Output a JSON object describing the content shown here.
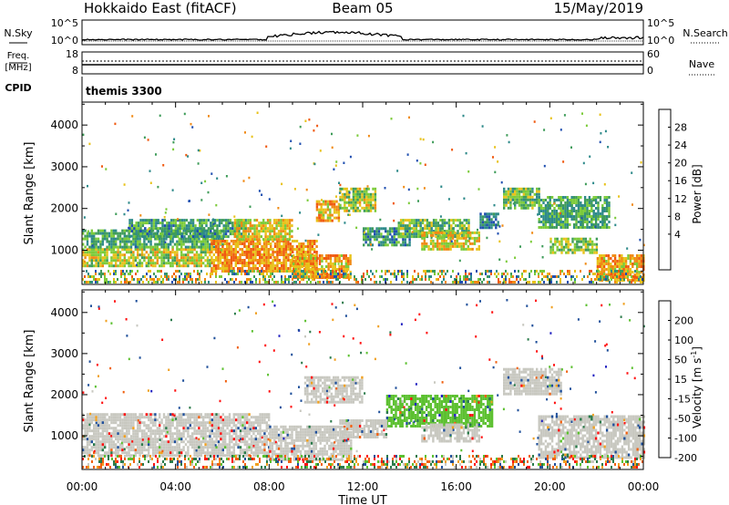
{
  "header": {
    "station": "Hokkaido East (fitACF)",
    "beam": "Beam 05",
    "date": "15/May/2019"
  },
  "top_panels": {
    "nsky_label": "N.Sky",
    "nsearch_label": "N.Search",
    "nsky_ticks": [
      "10^5",
      "10^0"
    ],
    "nsearch_ticks": [
      "10^5",
      "10^0"
    ],
    "freq_label_1": "Freq.",
    "freq_label_2": "[MHz]",
    "freq_ticks": [
      "18",
      "8"
    ],
    "nave_label": "Nave",
    "nave_ticks": [
      "60",
      "0"
    ],
    "cpid_label": "CPID",
    "cpid_value": "themis 3300"
  },
  "chart_data": [
    {
      "type": "heatmap",
      "title": "",
      "xlabel": "Time UT",
      "ylabel": "Slant Range [km]",
      "xlim": [
        0,
        24
      ],
      "ylim": [
        180,
        4550
      ],
      "x_ticks": [
        "00:00",
        "04:00",
        "08:00",
        "12:00",
        "16:00",
        "20:00",
        "00:00"
      ],
      "y_ticks": [
        1000,
        2000,
        3000,
        4000
      ],
      "colorbar": {
        "label": "Power [dB]",
        "ticks": [
          "28",
          "24",
          "20",
          "16",
          "12",
          "8",
          "4"
        ],
        "colors": [
          "#2020ff",
          "#204fb0",
          "#2e8a8a",
          "#3f9c5a",
          "#7ccb3a",
          "#e8c21a",
          "#f08a14",
          "#f05a10",
          "#ff1a1a"
        ]
      },
      "regions": [
        {
          "t": [
            0.0,
            5.5
          ],
          "r": [
            650,
            1050
          ],
          "v": 20
        },
        {
          "t": [
            0.0,
            6.0
          ],
          "r": [
            1050,
            1500
          ],
          "v": 14
        },
        {
          "t": [
            2.0,
            7.0
          ],
          "r": [
            1300,
            1750
          ],
          "v": 13
        },
        {
          "t": [
            5.5,
            10.0
          ],
          "r": [
            500,
            1250
          ],
          "v": 26
        },
        {
          "t": [
            6.5,
            9.0
          ],
          "r": [
            1250,
            1750
          ],
          "v": 22
        },
        {
          "t": [
            9.0,
            11.5
          ],
          "r": [
            350,
            900
          ],
          "v": 25
        },
        {
          "t": [
            10.0,
            11.0
          ],
          "r": [
            1700,
            2200
          ],
          "v": 24
        },
        {
          "t": [
            11.0,
            12.5
          ],
          "r": [
            1950,
            2500
          ],
          "v": 19
        },
        {
          "t": [
            12.0,
            14.0
          ],
          "r": [
            1150,
            1550
          ],
          "v": 12
        },
        {
          "t": [
            13.5,
            16.5
          ],
          "r": [
            1350,
            1750
          ],
          "v": 16
        },
        {
          "t": [
            14.5,
            17.0
          ],
          "r": [
            1050,
            1450
          ],
          "v": 22
        },
        {
          "t": [
            17.0,
            17.8
          ],
          "r": [
            1550,
            1900
          ],
          "v": 10
        },
        {
          "t": [
            18.0,
            19.5
          ],
          "r": [
            2000,
            2500
          ],
          "v": 16
        },
        {
          "t": [
            19.5,
            22.5
          ],
          "r": [
            1550,
            2300
          ],
          "v": 14
        },
        {
          "t": [
            20.0,
            22.0
          ],
          "r": [
            950,
            1300
          ],
          "v": 18
        },
        {
          "t": [
            22.0,
            24.0
          ],
          "r": [
            300,
            900
          ],
          "v": 25
        }
      ]
    },
    {
      "type": "heatmap",
      "title": "",
      "xlabel": "Time UT",
      "ylabel": "Slant Range [km]",
      "xlim": [
        0,
        24
      ],
      "ylim": [
        180,
        4550
      ],
      "x_ticks": [
        "00:00",
        "04:00",
        "08:00",
        "12:00",
        "16:00",
        "20:00",
        "00:00"
      ],
      "y_ticks": [
        1000,
        2000,
        3000,
        4000
      ],
      "colorbar": {
        "label": "Velocity [m s^-1]",
        "ticks": [
          "200",
          "100",
          "50",
          "15",
          "-15",
          "-50",
          "-100",
          "-200"
        ],
        "colors": [
          "#2020c0",
          "#1f4f9a",
          "#2a7a4a",
          "#5cc030",
          "#c8c8c0",
          "#f0a020",
          "#f06010",
          "#ff1010"
        ]
      },
      "regions": [
        {
          "t": [
            0.0,
            8.0
          ],
          "r": [
            500,
            1550
          ],
          "v": 0
        },
        {
          "t": [
            8.0,
            11.5
          ],
          "r": [
            400,
            1250
          ],
          "v": 0
        },
        {
          "t": [
            9.5,
            12.0
          ],
          "r": [
            1800,
            2450
          ],
          "v": 0
        },
        {
          "t": [
            13.0,
            17.5
          ],
          "r": [
            1250,
            2000
          ],
          "v": 40
        },
        {
          "t": [
            14.5,
            17.0
          ],
          "r": [
            900,
            1300
          ],
          "v": 0
        },
        {
          "t": [
            18.0,
            20.5
          ],
          "r": [
            2000,
            2650
          ],
          "v": 0
        },
        {
          "t": [
            19.5,
            24.0
          ],
          "r": [
            500,
            1500
          ],
          "v": 0
        },
        {
          "t": [
            11.0,
            13.0
          ],
          "r": [
            1000,
            1400
          ],
          "v": 0
        }
      ]
    }
  ]
}
